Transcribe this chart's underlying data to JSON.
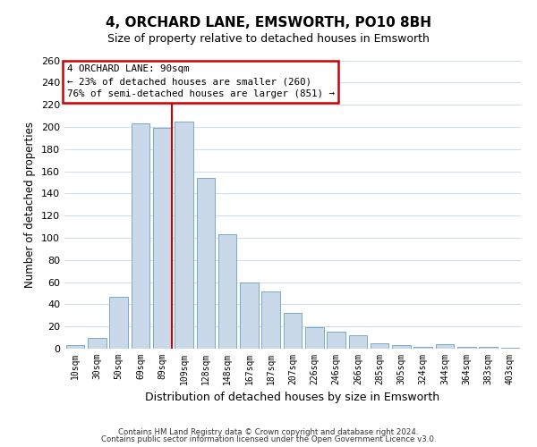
{
  "title": "4, ORCHARD LANE, EMSWORTH, PO10 8BH",
  "subtitle": "Size of property relative to detached houses in Emsworth",
  "xlabel": "Distribution of detached houses by size in Emsworth",
  "ylabel": "Number of detached properties",
  "categories": [
    "10sqm",
    "30sqm",
    "50sqm",
    "69sqm",
    "89sqm",
    "109sqm",
    "128sqm",
    "148sqm",
    "167sqm",
    "187sqm",
    "207sqm",
    "226sqm",
    "246sqm",
    "266sqm",
    "285sqm",
    "305sqm",
    "324sqm",
    "344sqm",
    "364sqm",
    "383sqm",
    "403sqm"
  ],
  "values": [
    3,
    10,
    47,
    203,
    199,
    205,
    154,
    103,
    60,
    52,
    32,
    19,
    15,
    12,
    5,
    3,
    2,
    4,
    2,
    2,
    1
  ],
  "bar_color": "#c9d9ea",
  "bar_edge_color": "#7aaac8",
  "vline_index": 4,
  "annotation_title": "4 ORCHARD LANE: 90sqm",
  "annotation_line1": "← 23% of detached houses are smaller (260)",
  "annotation_line2": "76% of semi-detached houses are larger (851) →",
  "annotation_box_facecolor": "#ffffff",
  "annotation_box_edgecolor": "#cc0000",
  "vline_color": "#cc0000",
  "ylim": [
    0,
    260
  ],
  "yticks": [
    0,
    20,
    40,
    60,
    80,
    100,
    120,
    140,
    160,
    180,
    200,
    220,
    240,
    260
  ],
  "background_color": "#ffffff",
  "grid_color": "#d0dcec",
  "footer_line1": "Contains HM Land Registry data © Crown copyright and database right 2024.",
  "footer_line2": "Contains public sector information licensed under the Open Government Licence v3.0."
}
